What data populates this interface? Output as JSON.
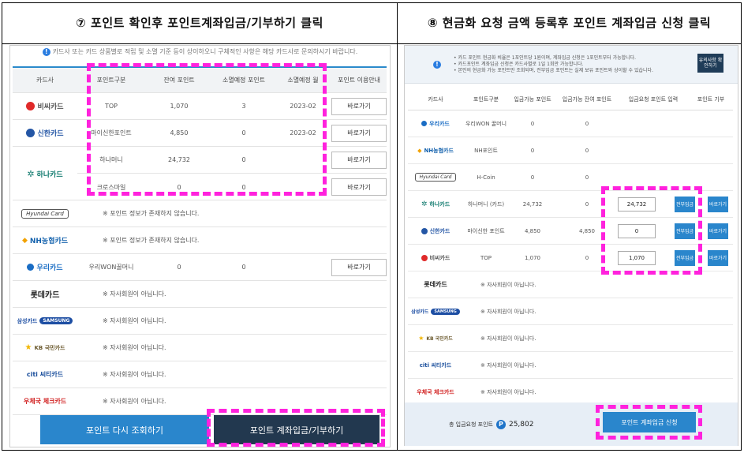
{
  "left": {
    "step_title": "⑦ 포인트 확인후 포인트계좌입금/기부하기 클릭",
    "notice": "카드사 또는 카드 상품별로 적립 및 소멸 기준 등이 상이하오니 구체적인 사항은 해당 카드사로 문의하시기 바랍니다.",
    "headers": [
      "카드사",
      "포인트구분",
      "잔여 포인트",
      "소멸예정 포인트",
      "소멸예정 월",
      "포인트 이용안내"
    ],
    "rows": [
      {
        "card": "비씨카드",
        "type": "TOP",
        "balance": "1,070",
        "expire": "3",
        "month": "2023-02",
        "btn": "바로가기"
      },
      {
        "card": "신한카드",
        "type": "마이신한포인트",
        "balance": "4,850",
        "expire": "0",
        "month": "2023-02",
        "btn": "바로가기"
      },
      {
        "card": "하나카드",
        "type": "하나머니",
        "balance": "24,732",
        "expire": "0",
        "month": "",
        "btn": "바로가기"
      },
      {
        "card": "",
        "type": "크로스마일",
        "balance": "0",
        "expire": "0",
        "month": "",
        "btn": "바로가기"
      },
      {
        "card": "Hyundai Card",
        "note": "※ 포인트 정보가 존재하지 않습니다."
      },
      {
        "card": "NH농협카드",
        "note": "※ 포인트 정보가 존재하지 않습니다."
      },
      {
        "card": "우리카드",
        "type": "우리WON꿀머니",
        "balance": "0",
        "expire": "0",
        "btn": "바로가기"
      },
      {
        "card": "롯데카드",
        "note": "※ 자사회원이 아닙니다."
      },
      {
        "card": "삼성카드",
        "brand": "SAMSUNG",
        "note": "※ 자사회원이 아닙니다."
      },
      {
        "card": "KB 국민카드",
        "note": "※ 자사회원이 아닙니다."
      },
      {
        "card": "citi 씨티카드",
        "note": "※ 자사회원이 아닙니다."
      },
      {
        "card": "우체국 체크카드",
        "note": "※ 자사회원이 아닙니다."
      }
    ],
    "btn_reload": "포인트 다시 조회하기",
    "btn_deposit": "포인트 계좌입금/기부하기"
  },
  "right": {
    "step_title": "⑧ 현금화 요청 금액 등록후 포인트 계좌입금 신청 클릭",
    "notes": [
      "• 카드 포인트 현금화 비율은 1포인트당 1원이며, 계좌입금 신청은 1포인트부터 가능합니다.",
      "• 카드포인트 계좌입금 신청은 카드사별로 1일 1회만 가능합니다.",
      "• 본인의 현금화 가능 포인트만 조회되며, 전부입금 포인트는 실제 보유 포인트와 상이할 수 있습니다."
    ],
    "top_btn": "유의사항 확인하기",
    "headers": [
      "카드사",
      "포인트구분",
      "입금가능 포인트",
      "입금가능 잔여 포인트",
      "입금요청 포인트 입력",
      "포인트 기부"
    ],
    "rows": [
      {
        "card": "우리카드",
        "type": "우리WON 꿀머니",
        "avail": "0",
        "remain": "0"
      },
      {
        "card": "NH농협카드",
        "type": "NH포인트",
        "avail": "0",
        "remain": "0"
      },
      {
        "card": "Hyundai Card",
        "type": "H-Coin",
        "avail": "0",
        "remain": "0"
      },
      {
        "card": "하나카드",
        "type": "하나머니 (카드)",
        "avail": "24,732",
        "remain": "0",
        "input": "24,732",
        "all": "전부입금",
        "go": "바로가기"
      },
      {
        "card": "신한카드",
        "type": "마이신한 포인트",
        "avail": "4,850",
        "remain": "4,850",
        "input": "0",
        "all": "전부입금",
        "go": "바로가기"
      },
      {
        "card": "비씨카드",
        "type": "TOP",
        "avail": "1,070",
        "remain": "0",
        "input": "1,070",
        "all": "전부입금",
        "go": "바로가기"
      },
      {
        "card": "롯데카드",
        "note": "※ 자사회원이 아닙니다."
      },
      {
        "card": "삼성카드",
        "brand": "SAMSUNG",
        "note": "※ 자사회원이 아닙니다."
      },
      {
        "card": "KB 국민카드",
        "note": "※ 자사회원이 아닙니다."
      },
      {
        "card": "citi 씨티카드",
        "note": "※ 자사회원이 아닙니다."
      },
      {
        "card": "우체국 체크카드",
        "note": "※ 자사회원이 아닙니다."
      }
    ],
    "total_label": "총 입금요청 포인트",
    "total_badge": "P",
    "total_value": "25,802",
    "apply_btn": "포인트 계좌입금 신청"
  },
  "colors": {
    "highlight": "#ff22dd",
    "blue": "#2a86cc",
    "dark": "#22384f"
  }
}
